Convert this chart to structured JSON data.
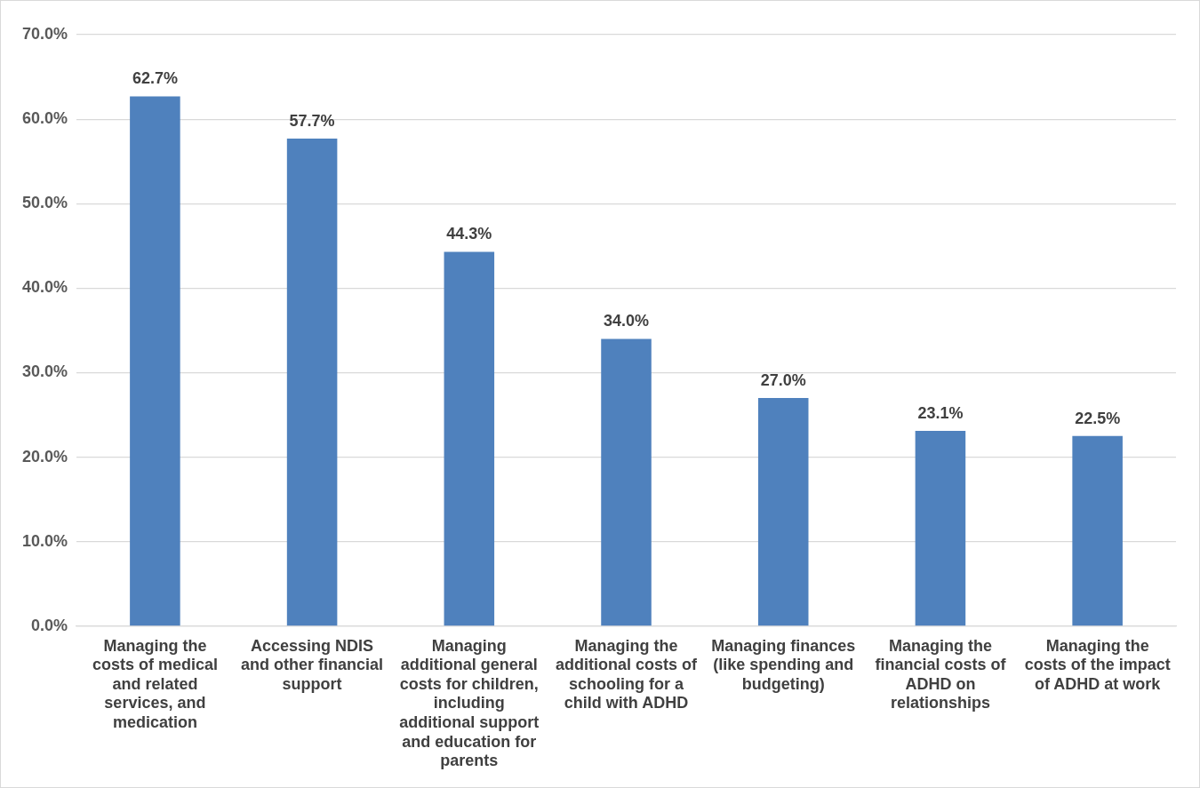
{
  "chart_data": {
    "type": "bar",
    "categories": [
      "Managing the costs of medical and related services, and medication",
      "Accessing NDIS and other financial support",
      "Managing additional general costs for children, including additional support and education for parents",
      "Managing the additional costs of schooling for a child with ADHD",
      "Managing finances (like spending and budgeting)",
      "Managing the financial costs of ADHD on relationships",
      "Managing the costs of the impact of ADHD at work"
    ],
    "values": [
      62.7,
      57.7,
      44.3,
      34.0,
      27.0,
      23.1,
      22.5
    ],
    "value_labels": [
      "62.7%",
      "57.7%",
      "44.3%",
      "34.0%",
      "27.0%",
      "23.1%",
      "22.5%"
    ],
    "color": "#4f81bd",
    "ylim": [
      0,
      70
    ],
    "yticks": [
      {
        "value": 0,
        "label": "0.0%"
      },
      {
        "value": 10,
        "label": "10.0%"
      },
      {
        "value": 20,
        "label": "20.0%"
      },
      {
        "value": 30,
        "label": "30.0%"
      },
      {
        "value": 40,
        "label": "40.0%"
      },
      {
        "value": 50,
        "label": "50.0%"
      },
      {
        "value": 60,
        "label": "60.0%"
      },
      {
        "value": 70,
        "label": "70.0%"
      }
    ],
    "grid": "y",
    "legend": false
  }
}
